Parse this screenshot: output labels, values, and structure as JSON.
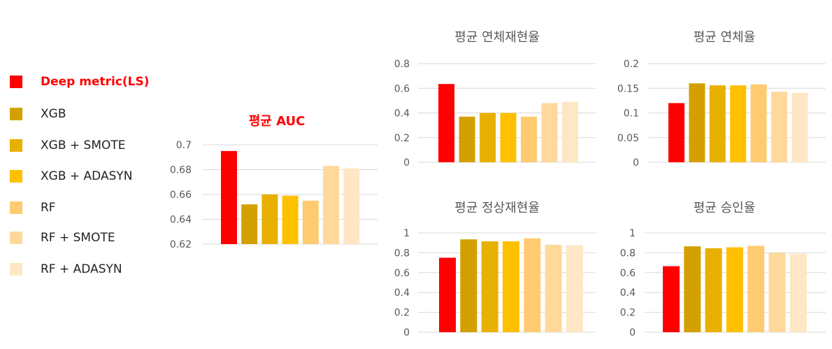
{
  "legend": [
    {
      "label": "Deep metric(LS)",
      "color": "#ff0000",
      "highlight": true
    },
    {
      "label": "XGB",
      "color": "#d4a000"
    },
    {
      "label": "XGB + SMOTE",
      "color": "#e8b000"
    },
    {
      "label": "XGB + ADASYN",
      "color": "#ffc000"
    },
    {
      "label": "RF",
      "color": "#ffcb70"
    },
    {
      "label": "RF + SMOTE",
      "color": "#ffd89c"
    },
    {
      "label": "RF + ADASYN",
      "color": "#ffe6c4"
    }
  ],
  "chart_data": [
    {
      "type": "bar",
      "title": "평균 AUC",
      "title_color": "#ff0000",
      "series_names": [
        "Deep metric(LS)",
        "XGB",
        "XGB + SMOTE",
        "XGB + ADASYN",
        "RF",
        "RF + SMOTE",
        "RF + ADASYN"
      ],
      "values": [
        0.695,
        0.652,
        0.66,
        0.659,
        0.655,
        0.683,
        0.681
      ],
      "ylim": [
        0.62,
        0.7
      ],
      "yticks": [
        "0.62",
        "0.64",
        "0.66",
        "0.68",
        "0.7"
      ],
      "grid": true
    },
    {
      "type": "bar",
      "title": "평균 연체재현율",
      "series_names": [
        "Deep metric(LS)",
        "XGB",
        "XGB + SMOTE",
        "XGB + ADASYN",
        "RF",
        "RF + SMOTE",
        "RF + ADASYN"
      ],
      "values": [
        0.635,
        0.37,
        0.4,
        0.4,
        0.37,
        0.48,
        0.49
      ],
      "ylim": [
        0,
        0.8
      ],
      "yticks": [
        "0",
        "0.2",
        "0.4",
        "0.6",
        "0.8"
      ],
      "grid": true
    },
    {
      "type": "bar",
      "title": "평균 연체율",
      "series_names": [
        "Deep metric(LS)",
        "XGB",
        "XGB + SMOTE",
        "XGB + ADASYN",
        "RF",
        "RF + SMOTE",
        "RF + ADASYN"
      ],
      "values": [
        0.12,
        0.16,
        0.156,
        0.156,
        0.158,
        0.143,
        0.141
      ],
      "ylim": [
        0,
        0.2
      ],
      "yticks": [
        "0",
        "0.05",
        "0.1",
        "0.15",
        "0.2"
      ],
      "grid": true
    },
    {
      "type": "bar",
      "title": "평균 정상재현율",
      "series_names": [
        "Deep metric(LS)",
        "XGB",
        "XGB + SMOTE",
        "XGB + ADASYN",
        "RF",
        "RF + SMOTE",
        "RF + ADASYN"
      ],
      "values": [
        0.75,
        0.935,
        0.915,
        0.915,
        0.945,
        0.88,
        0.875
      ],
      "ylim": [
        0,
        1
      ],
      "yticks": [
        "0",
        "0.2",
        "0.4",
        "0.6",
        "0.8",
        "1"
      ],
      "grid": true
    },
    {
      "type": "bar",
      "title": "평균 승인율",
      "series_names": [
        "Deep metric(LS)",
        "XGB",
        "XGB + SMOTE",
        "XGB + ADASYN",
        "RF",
        "RF + SMOTE",
        "RF + ADASYN"
      ],
      "values": [
        0.665,
        0.865,
        0.845,
        0.855,
        0.87,
        0.8,
        0.79
      ],
      "ylim": [
        0,
        1
      ],
      "yticks": [
        "0",
        "0.2",
        "0.4",
        "0.6",
        "0.8",
        "1"
      ],
      "grid": true
    }
  ]
}
